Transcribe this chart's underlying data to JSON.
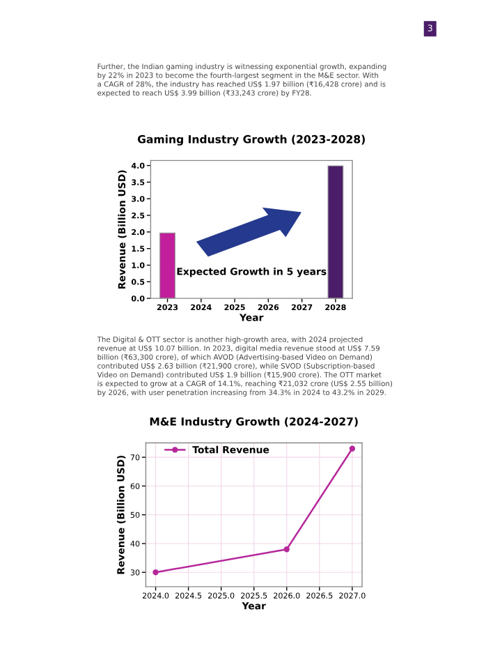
{
  "chart_data": [
    {
      "type": "bar",
      "title": "Gaming Industry Growth (2023-2028)",
      "xlabel": "Year",
      "ylabel": "Revenue (Billion USD)",
      "categories": [
        "2023",
        "2024",
        "2025",
        "2026",
        "2027",
        "2028"
      ],
      "values": [
        1.97,
        null,
        null,
        null,
        null,
        3.99
      ],
      "colors": [
        "#c21f9c",
        null,
        null,
        null,
        null,
        "#4b1d68"
      ],
      "ylim": [
        0,
        4.15
      ],
      "yticks": [
        {
          "value": 0,
          "label": "0.0"
        },
        {
          "value": 0.5,
          "label": "0.5"
        },
        {
          "value": 1,
          "label": "1.0"
        },
        {
          "value": 1.5,
          "label": "1.5"
        },
        {
          "value": 2,
          "label": "2.0"
        },
        {
          "value": 2.5,
          "label": "2.5"
        },
        {
          "value": 3,
          "label": "3.0"
        },
        {
          "value": 3.5,
          "label": "3.5"
        },
        {
          "value": 4,
          "label": "4.0"
        }
      ],
      "grid": false,
      "annotations": [
        "3",
        "Further, the Indian gaming industry is witnessing exponential growth, expanding\nby 22% in 2023 to become the fourth-largest segment in the M&E sector. With\na CAGR of 28%, the industry has reached US$ 1.97 billion (₹16,428 crore) and is\nexpected to reach US$ 3.99 billion (₹33,243 crore) by FY28.",
        "Expected Growth in 5 years"
      ]
    },
    {
      "type": "line",
      "title": "M&E Industry Growth (2024-2027)",
      "xlabel": "Year",
      "ylabel": "Revenue (Billion USD)",
      "x": [
        2024,
        2026,
        2027
      ],
      "series": [
        {
          "name": "Total Revenue",
          "color": "#b5289b",
          "values": [
            30,
            38,
            73
          ]
        }
      ],
      "xlim": [
        2023.85,
        2027.15
      ],
      "xticks": [
        {
          "value": 2024,
          "label": "2024.0"
        },
        {
          "value": 2024.5,
          "label": "2024.5"
        },
        {
          "value": 2025,
          "label": "2025.0"
        },
        {
          "value": 2025.5,
          "label": "2025.5"
        },
        {
          "value": 2026,
          "label": "2026.0"
        },
        {
          "value": 2026.5,
          "label": "2026.5"
        },
        {
          "value": 2027,
          "label": "2027.0"
        }
      ],
      "ylim": [
        25,
        75
      ],
      "yticks": [
        30,
        40,
        50,
        60,
        70
      ],
      "grid": true,
      "legend": "top left",
      "marker": "circle",
      "line_style": "solid",
      "annotations": [
        "The Digital & OTT sector is another high-growth area, with 2024 projected\nrevenue at US$ 10.07 billion. In 2023, digital media revenue stood at US$ 7.59\nbillion (₹63,300 crore), of which AVOD (Advertising-based Video on Demand)\ncontributed US$ 2.63 billion (₹21,900 crore), while SVOD (Subscription-based\nVideo on Demand) contributed US$ 1.9 billion (₹15,900 crore). The OTT market\nis expected to grow at a CAGR of 14.1%, reaching ₹21,032 crore (US$ 2.55 billion)\nby 2026, with user penetration increasing from 34.3% in 2024 to 43.2% in 2029."
      ]
    }
  ]
}
